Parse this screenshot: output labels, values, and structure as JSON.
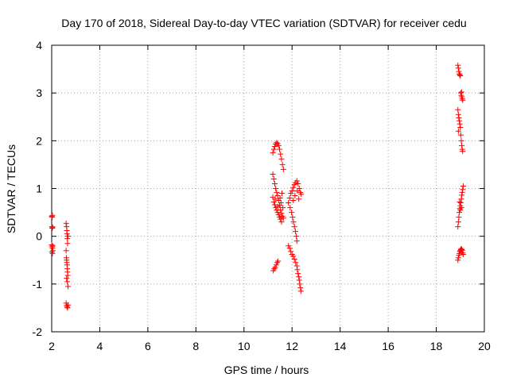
{
  "chart_data": {
    "type": "scatter",
    "title": "Day 170 of 2018, Sidereal Day-to-day VTEC variation (SDTVAR) for receiver cedu",
    "xlabel": "GPS time / hours",
    "ylabel": "SDTVAR / TECUs",
    "xlim": [
      2,
      20
    ],
    "ylim": [
      -2,
      4
    ],
    "xticks": [
      2,
      4,
      6,
      8,
      10,
      12,
      14,
      16,
      18,
      20
    ],
    "yticks": [
      -2,
      -1,
      0,
      1,
      2,
      3,
      4
    ],
    "grid": true,
    "marker": "+",
    "marker_color": "#ff0000",
    "series": [
      {
        "name": "SDTVAR",
        "points": [
          [
            2.0,
            0.42
          ],
          [
            2.02,
            0.4
          ],
          [
            2.03,
            0.44
          ],
          [
            2.01,
            0.2
          ],
          [
            2.02,
            0.17
          ],
          [
            2.04,
            0.19
          ],
          [
            2.0,
            -0.18
          ],
          [
            2.02,
            -0.22
          ],
          [
            2.03,
            -0.25
          ],
          [
            2.04,
            -0.2
          ],
          [
            2.01,
            -0.33
          ],
          [
            2.03,
            -0.36
          ],
          [
            2.05,
            -0.3
          ],
          [
            2.6,
            0.27
          ],
          [
            2.62,
            0.2
          ],
          [
            2.63,
            0.12
          ],
          [
            2.64,
            0.05
          ],
          [
            2.65,
            -0.05
          ],
          [
            2.66,
            -0.15
          ],
          [
            2.68,
            0.0
          ],
          [
            2.6,
            -0.3
          ],
          [
            2.61,
            -0.45
          ],
          [
            2.62,
            -0.5
          ],
          [
            2.63,
            -0.55
          ],
          [
            2.64,
            -0.6
          ],
          [
            2.65,
            -0.68
          ],
          [
            2.66,
            -0.75
          ],
          [
            2.67,
            -0.82
          ],
          [
            2.62,
            -0.88
          ],
          [
            2.65,
            -0.95
          ],
          [
            2.68,
            -1.05
          ],
          [
            2.6,
            -1.4
          ],
          [
            2.62,
            -1.45
          ],
          [
            2.64,
            -1.48
          ],
          [
            2.66,
            -1.5
          ],
          [
            2.68,
            -1.44
          ],
          [
            11.2,
            1.75
          ],
          [
            11.24,
            1.82
          ],
          [
            11.28,
            1.88
          ],
          [
            11.32,
            1.93
          ],
          [
            11.36,
            1.96
          ],
          [
            11.4,
            1.94
          ],
          [
            11.44,
            1.9
          ],
          [
            11.48,
            1.82
          ],
          [
            11.52,
            1.72
          ],
          [
            11.56,
            1.62
          ],
          [
            11.6,
            1.5
          ],
          [
            11.64,
            1.4
          ],
          [
            11.2,
            1.3
          ],
          [
            11.24,
            1.2
          ],
          [
            11.28,
            1.1
          ],
          [
            11.32,
            1.0
          ],
          [
            11.36,
            0.92
          ],
          [
            11.4,
            0.85
          ],
          [
            11.44,
            0.75
          ],
          [
            11.48,
            0.65
          ],
          [
            11.52,
            0.55
          ],
          [
            11.56,
            0.48
          ],
          [
            11.6,
            0.42
          ],
          [
            11.64,
            0.38
          ],
          [
            11.2,
            0.82
          ],
          [
            11.24,
            0.72
          ],
          [
            11.28,
            0.66
          ],
          [
            11.32,
            0.6
          ],
          [
            11.36,
            0.55
          ],
          [
            11.4,
            0.5
          ],
          [
            11.44,
            0.45
          ],
          [
            11.48,
            0.4
          ],
          [
            11.52,
            0.36
          ],
          [
            11.56,
            0.3
          ],
          [
            11.3,
            0.78
          ],
          [
            11.42,
            0.62
          ],
          [
            11.5,
            0.8
          ],
          [
            11.54,
            0.7
          ],
          [
            11.58,
            0.9
          ],
          [
            11.62,
            0.6
          ],
          [
            11.22,
            -0.72
          ],
          [
            11.26,
            -0.68
          ],
          [
            11.3,
            -0.65
          ],
          [
            11.34,
            -0.6
          ],
          [
            11.38,
            -0.55
          ],
          [
            11.42,
            -0.52
          ],
          [
            11.85,
            -0.2
          ],
          [
            11.9,
            -0.25
          ],
          [
            11.95,
            -0.32
          ],
          [
            12.0,
            -0.38
          ],
          [
            12.05,
            -0.42
          ],
          [
            12.1,
            -0.48
          ],
          [
            12.15,
            -0.55
          ],
          [
            12.2,
            -0.62
          ],
          [
            12.22,
            -0.7
          ],
          [
            12.25,
            -0.78
          ],
          [
            12.28,
            -0.85
          ],
          [
            12.3,
            -0.92
          ],
          [
            12.32,
            -1.0
          ],
          [
            12.35,
            -1.08
          ],
          [
            12.37,
            -1.15
          ],
          [
            11.85,
            0.7
          ],
          [
            11.9,
            0.8
          ],
          [
            11.95,
            0.9
          ],
          [
            12.0,
            0.95
          ],
          [
            12.05,
            1.02
          ],
          [
            12.1,
            1.08
          ],
          [
            12.15,
            1.12
          ],
          [
            12.2,
            1.16
          ],
          [
            12.25,
            1.1
          ],
          [
            12.3,
            1.0
          ],
          [
            12.35,
            0.92
          ],
          [
            12.38,
            0.88
          ],
          [
            11.92,
            0.6
          ],
          [
            11.98,
            0.5
          ],
          [
            12.02,
            0.4
          ],
          [
            12.06,
            0.3
          ],
          [
            12.1,
            0.2
          ],
          [
            12.14,
            0.1
          ],
          [
            12.18,
            0.0
          ],
          [
            12.2,
            -0.1
          ],
          [
            12.05,
            0.75
          ],
          [
            12.12,
            0.85
          ],
          [
            12.28,
            0.78
          ],
          [
            12.22,
            0.95
          ],
          [
            18.9,
            3.58
          ],
          [
            18.92,
            3.52
          ],
          [
            18.94,
            3.45
          ],
          [
            18.96,
            3.4
          ],
          [
            18.98,
            3.38
          ],
          [
            19.0,
            3.36
          ],
          [
            19.02,
            3.0
          ],
          [
            19.04,
            2.95
          ],
          [
            19.06,
            2.92
          ],
          [
            19.08,
            2.88
          ],
          [
            19.1,
            2.85
          ],
          [
            19.05,
            3.02
          ],
          [
            18.9,
            2.65
          ],
          [
            18.92,
            2.55
          ],
          [
            18.94,
            2.48
          ],
          [
            18.96,
            2.42
          ],
          [
            18.98,
            2.35
          ],
          [
            19.0,
            2.28
          ],
          [
            18.92,
            2.2
          ],
          [
            19.02,
            2.12
          ],
          [
            19.04,
            2.0
          ],
          [
            19.06,
            1.9
          ],
          [
            19.08,
            1.82
          ],
          [
            19.1,
            1.78
          ],
          [
            18.9,
            0.2
          ],
          [
            18.92,
            0.3
          ],
          [
            18.94,
            0.4
          ],
          [
            18.96,
            0.5
          ],
          [
            18.98,
            0.58
          ],
          [
            19.0,
            0.64
          ],
          [
            19.02,
            0.7
          ],
          [
            19.04,
            0.78
          ],
          [
            19.06,
            0.86
          ],
          [
            19.08,
            0.92
          ],
          [
            19.1,
            0.98
          ],
          [
            19.12,
            1.05
          ],
          [
            19.0,
            0.55
          ],
          [
            19.05,
            0.6
          ],
          [
            18.97,
            0.72
          ],
          [
            18.9,
            -0.5
          ],
          [
            18.92,
            -0.45
          ],
          [
            18.94,
            -0.4
          ],
          [
            18.96,
            -0.36
          ],
          [
            18.98,
            -0.32
          ],
          [
            19.0,
            -0.3
          ],
          [
            19.02,
            -0.28
          ],
          [
            19.04,
            -0.26
          ],
          [
            19.06,
            -0.28
          ],
          [
            19.08,
            -0.3
          ],
          [
            19.1,
            -0.35
          ],
          [
            19.12,
            -0.38
          ]
        ]
      }
    ]
  }
}
